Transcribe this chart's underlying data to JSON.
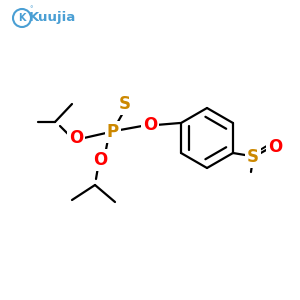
{
  "bg_color": "#ffffff",
  "atom_colors": {
    "P": "#cc8800",
    "S": "#cc8800",
    "O": "#ff0000",
    "C": "#000000"
  },
  "bond_color": "#000000",
  "bond_width": 1.6,
  "logo_color": "#4a9fd4",
  "logo_circle_color": "#4a9fd4"
}
